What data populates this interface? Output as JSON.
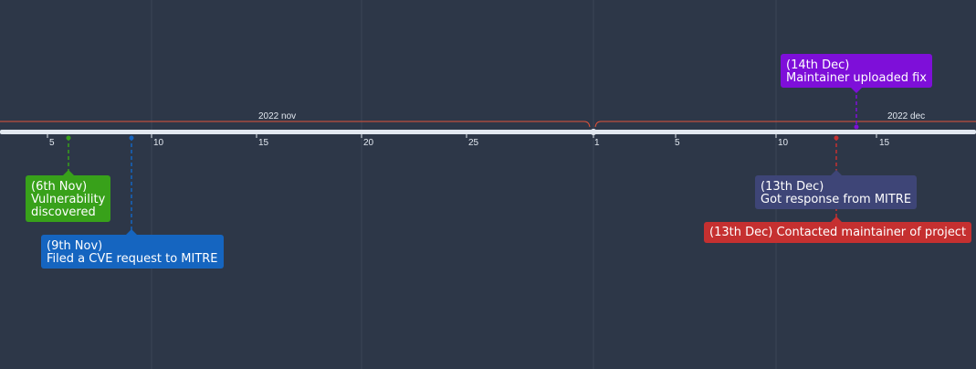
{
  "axis": {
    "months": [
      {
        "label": "2022 nov"
      },
      {
        "label": "2022 dec"
      }
    ],
    "ticks": [
      "5",
      "10",
      "15",
      "20",
      "25",
      "1",
      "5",
      "10",
      "15"
    ]
  },
  "events": [
    {
      "date": "6th Nov",
      "lines": [
        "(6th Nov)",
        "Vulnerability",
        "discovered"
      ],
      "color": "#38a11a"
    },
    {
      "date": "9th Nov",
      "lines": [
        "(9th Nov)",
        "Filed a CVE request to MITRE"
      ],
      "color": "#1565c0"
    },
    {
      "date": "13th Dec",
      "lines": [
        "(13th Dec)",
        "Got response from MITRE"
      ],
      "color": "#3e4577"
    },
    {
      "date": "13th Dec",
      "lines": [
        "(13th Dec) Contacted maintainer of project"
      ],
      "color": "#c53030"
    },
    {
      "date": "14th Dec",
      "lines": [
        "(14th Dec)",
        "Maintainer uploaded fix"
      ],
      "color": "#7e0fd9"
    }
  ],
  "colors": {
    "background": "#2d3748",
    "axis": "#e2e8f0",
    "month_bracket": "#e0533a",
    "grid": "#3a4556"
  }
}
